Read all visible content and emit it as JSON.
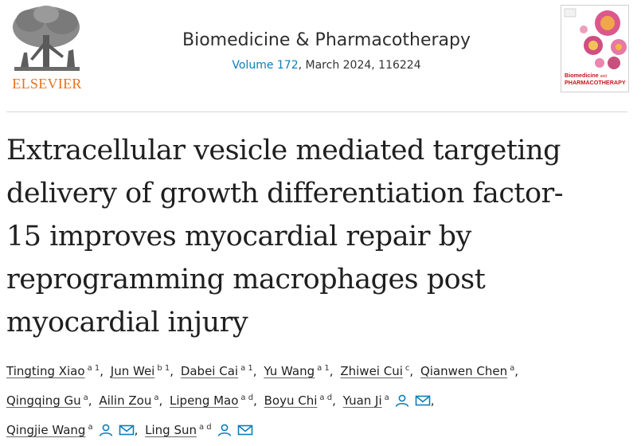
{
  "header": {
    "publisher": "ELSEVIER",
    "journal_name": "Biomedicine & Pharmacotherapy",
    "volume_link": "Volume 172",
    "volume_rest": ", March 2024, 116224",
    "cover_title_line1": "Biomedicine",
    "cover_title_small": "and",
    "cover_title_line2": "PHARMACOTHERAPY"
  },
  "article": {
    "title_lines": [
      "Extracellular vesicle mediated targeting",
      "delivery of growth differentiation factor-",
      "15 improves myocardial repair by",
      "reprogramming macrophages post",
      "myocardial injury"
    ]
  },
  "authors": [
    {
      "name": "Tingting Xiao",
      "aff": "a 1"
    },
    {
      "name": "Jun Wei",
      "aff": "b 1"
    },
    {
      "name": "Dabei Cai",
      "aff": "a 1"
    },
    {
      "name": "Yu Wang",
      "aff": "a 1"
    },
    {
      "name": "Zhiwei Cui",
      "aff": "c"
    },
    {
      "name": "Qianwen Chen",
      "aff": "a"
    },
    {
      "name": "Qingqing Gu",
      "aff": "a"
    },
    {
      "name": "Ailin Zou",
      "aff": "a"
    },
    {
      "name": "Lipeng Mao",
      "aff": "a d"
    },
    {
      "name": "Boyu Chi",
      "aff": "a d"
    },
    {
      "name": "Yuan Ji",
      "aff": "a"
    },
    {
      "name": "Qingjie Wang",
      "aff": "a"
    },
    {
      "name": "Ling Sun",
      "aff": "a d"
    }
  ],
  "icons": {
    "person": "person-icon",
    "email": "envelope-icon"
  },
  "colors": {
    "publisher_orange": "#e9711c",
    "link_blue": "#0c7dbb",
    "cover_red": "#c3161c"
  }
}
